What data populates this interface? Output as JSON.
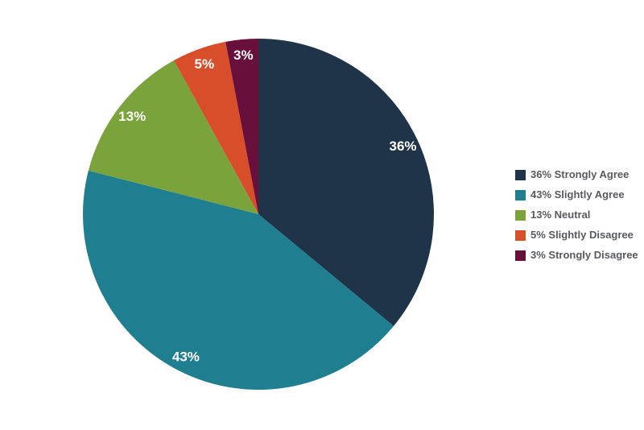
{
  "chart_data": {
    "type": "pie",
    "title": "",
    "categories": [
      "Strongly Agree",
      "Slightly Agree",
      "Neutral",
      "Slightly Disagree",
      "Strongly Disagree"
    ],
    "values": [
      36,
      43,
      13,
      5,
      3
    ],
    "unit": "%",
    "slices": [
      {
        "label": "Strongly Agree",
        "value": 36,
        "data_label": "36%",
        "legend_label": "36% Strongly Agree",
        "color": "#1f3449"
      },
      {
        "label": "Slightly Agree",
        "value": 43,
        "data_label": "43%",
        "legend_label": "43% Slightly Agree",
        "color": "#1f7e8f"
      },
      {
        "label": "Neutral",
        "value": 13,
        "data_label": "13%",
        "legend_label": "13% Neutral",
        "color": "#7ba33c"
      },
      {
        "label": "Slightly Disagree",
        "value": 5,
        "data_label": "5%",
        "legend_label": "5% Slightly Disagree",
        "color": "#d84e2b"
      },
      {
        "label": "Strongly Disagree",
        "value": 3,
        "data_label": "3%",
        "legend_label": "3% Strongly Disagree",
        "color": "#690f3c"
      }
    ],
    "start_angle_deg": 0,
    "direction": "clockwise",
    "legend_position": "right",
    "data_label_color": "#ffffff",
    "legend_text_color": "#595a5c",
    "background_color": "#ffffff"
  }
}
